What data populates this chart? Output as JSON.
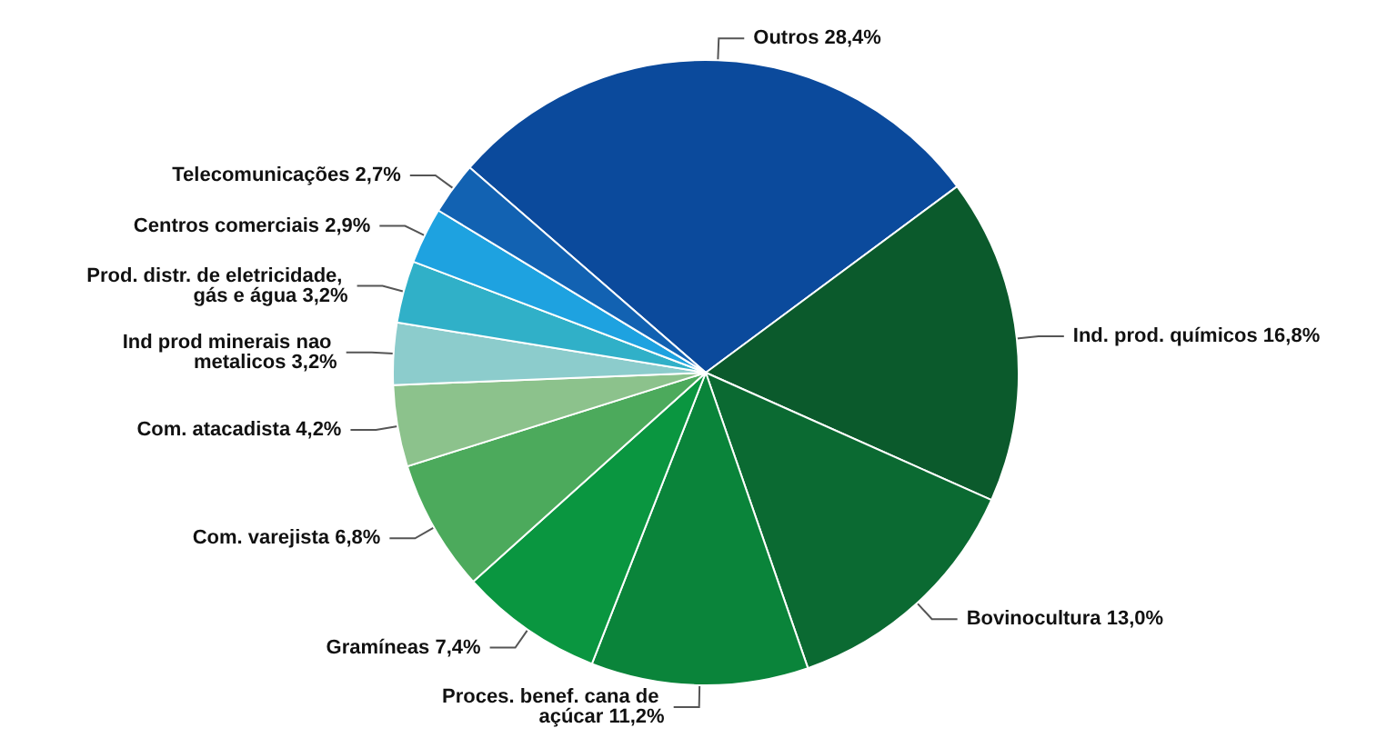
{
  "chart_data": {
    "type": "pie",
    "categories": [
      "Outros",
      "Ind. prod. químicos",
      "Bovinocultura",
      "Proces. benef. cana de açúcar",
      "Gramíneas",
      "Com. varejista",
      "Com. atacadista",
      "Ind prod minerais nao metalicos",
      "Prod. distr. de eletricidade, gás e água",
      "Centros comerciais",
      "Telecomunicações"
    ],
    "values": [
      28.4,
      16.8,
      13.0,
      11.2,
      7.4,
      6.8,
      4.2,
      3.2,
      3.2,
      2.9,
      2.7
    ],
    "value_labels": [
      "28,4%",
      "16,8%",
      "13,0%",
      "11,2%",
      "7,4%",
      "6,8%",
      "4,2%",
      "3,2%",
      "3,2%",
      "2,9%",
      "2,7%"
    ],
    "colors": [
      "#0b4a9c",
      "#0b5a2c",
      "#0b6a32",
      "#0a843a",
      "#0a9640",
      "#4caa5c",
      "#8cc28c",
      "#8ccccc",
      "#30b0c8",
      "#1ea2e0",
      "#1262b2"
    ]
  }
}
